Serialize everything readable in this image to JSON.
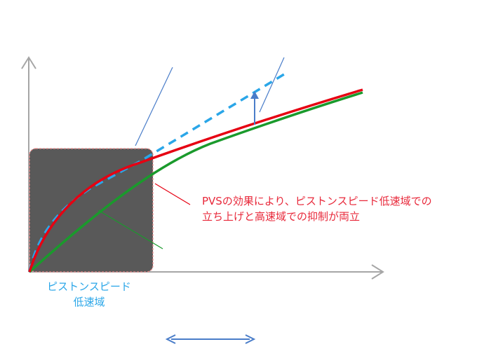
{
  "annotations": {
    "pvs_effect": {
      "line1": "PVSの効果により、ピストンスピード低速域での",
      "line2": "立ち上げと高速域での抑制が両立"
    },
    "low_speed_region": {
      "line1": "ピストンスピード",
      "line2": "低速域"
    }
  },
  "colors": {
    "axis": "#a6a6a6",
    "low_speed_box": "#595959",
    "box_border": "#e88a8a",
    "red_curve": "#e60012",
    "green_curve": "#1a9a2c",
    "dashed_curve": "#2aa6e8",
    "blue_accent": "#4a7dc9",
    "red_text": "#e8283a",
    "blue_text": "#2aa6e8"
  }
}
